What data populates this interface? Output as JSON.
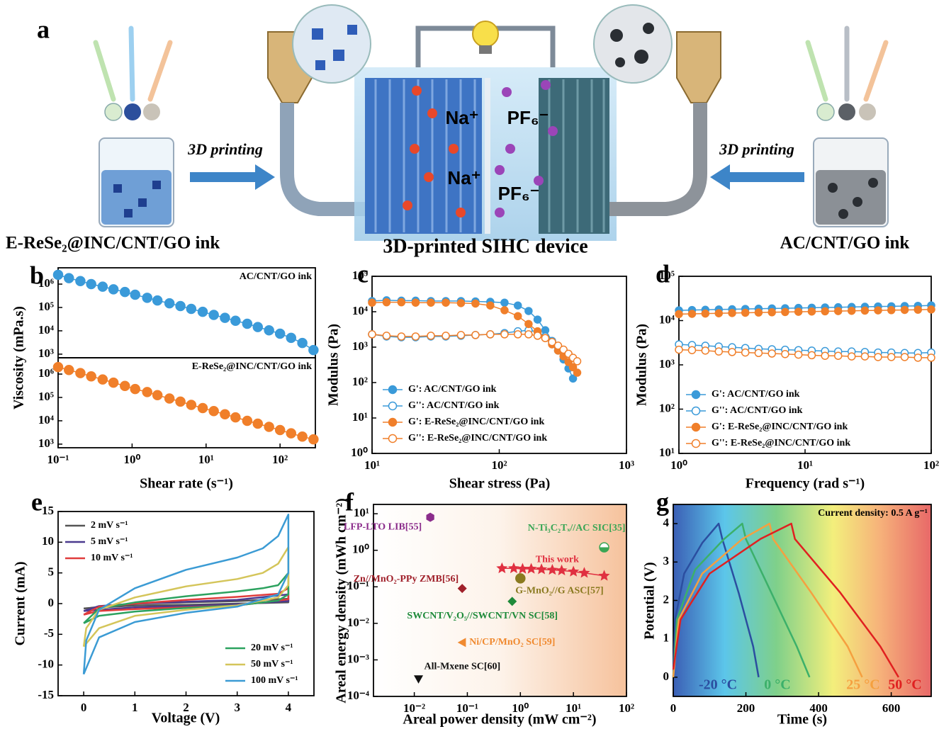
{
  "figure_a": {
    "panel": "a",
    "arrow_left": "3D printing",
    "arrow_right": "3D printing",
    "left_label": "E-ReSe₂@INC/CNT/GO ink",
    "center_label": "3D-printed SIHC device",
    "right_label": "AC/CNT/GO ink",
    "ions": [
      "Na⁺",
      "PF₆⁻",
      "Na⁺",
      "PF₆⁻"
    ]
  },
  "chart_data": [
    {
      "panel": "b",
      "type": "line",
      "annotation": "AC/CNT/GO ink",
      "ylabel": "Viscosity (mPa.s)",
      "xlog": true,
      "ylog": true,
      "xlim": [
        0.1,
        300
      ],
      "ylim": [
        700,
        5000000
      ],
      "yticks": [
        {
          "value": 1000,
          "label": "10³"
        },
        {
          "value": 10000,
          "label": "10⁴"
        },
        {
          "value": 100000,
          "label": "10⁵"
        },
        {
          "value": 1000000,
          "label": "10⁶"
        }
      ],
      "x": [
        0.1,
        0.14,
        0.2,
        0.28,
        0.4,
        0.56,
        0.8,
        1.1,
        1.6,
        2.2,
        3.2,
        4.5,
        6.3,
        9,
        12.7,
        18,
        25,
        36,
        50,
        71,
        100,
        141,
        200,
        283
      ],
      "series": [
        {
          "color": "#3a9ad9",
          "marker": "filled-circle",
          "values": [
            2500000,
            1800000,
            1350000,
            1000000,
            780000,
            600000,
            460000,
            350000,
            260000,
            200000,
            150000,
            115000,
            87000,
            65000,
            48000,
            36000,
            27000,
            20000,
            14500,
            10500,
            7500,
            5000,
            3000,
            1500
          ]
        }
      ]
    },
    {
      "type": "line",
      "annotation": "E-ReSe₂@INC/CNT/GO ink",
      "xlabel": "Shear rate (s⁻¹)",
      "xlog": true,
      "ylog": true,
      "xlim": [
        0.1,
        300
      ],
      "ylim": [
        700,
        5000000
      ],
      "xticks": [
        {
          "value": 0.1,
          "label": "10⁻¹"
        },
        {
          "value": 1,
          "label": "10⁰"
        },
        {
          "value": 10,
          "label": "10¹"
        },
        {
          "value": 100,
          "label": "10²"
        }
      ],
      "yticks": [
        {
          "value": 1000,
          "label": "10³"
        },
        {
          "value": 10000,
          "label": "10⁴"
        },
        {
          "value": 100000,
          "label": "10⁵"
        },
        {
          "value": 1000000,
          "label": "10⁶"
        }
      ],
      "x": [
        0.1,
        0.14,
        0.2,
        0.28,
        0.4,
        0.56,
        0.8,
        1.1,
        1.6,
        2.2,
        3.2,
        4.5,
        6.3,
        9,
        12.7,
        18,
        25,
        36,
        50,
        71,
        100,
        141,
        200,
        283
      ],
      "series": [
        {
          "color": "#f07f2a",
          "marker": "filled-circle",
          "values": [
            2000000,
            1500000,
            1100000,
            800000,
            590000,
            430000,
            310000,
            230000,
            170000,
            125000,
            90000,
            66000,
            48000,
            35000,
            26000,
            19000,
            14000,
            10000,
            7500,
            5500,
            4000,
            2900,
            2100,
            1600
          ]
        }
      ]
    },
    {
      "panel": "c",
      "type": "line",
      "xlabel": "Shear stress (Pa)",
      "ylabel": "Modulus (Pa)",
      "xlog": true,
      "ylog": true,
      "legend": "lower left",
      "xlim": [
        10,
        1000
      ],
      "ylim": [
        1,
        100000
      ],
      "xticks": [
        {
          "value": 10,
          "label": "10¹"
        },
        {
          "value": 100,
          "label": "10²"
        },
        {
          "value": 1000,
          "label": "10³"
        }
      ],
      "yticks": [
        {
          "value": 1,
          "label": "10⁰"
        },
        {
          "value": 10,
          "label": "10¹"
        },
        {
          "value": 100,
          "label": "10²"
        },
        {
          "value": 1000,
          "label": "10³"
        },
        {
          "value": 10000,
          "label": "10⁴"
        },
        {
          "value": 100000,
          "label": "10⁵"
        }
      ],
      "x": [
        10,
        13,
        17,
        22,
        29,
        38,
        50,
        65,
        85,
        110,
        140,
        170,
        200,
        230,
        260,
        290,
        320,
        350,
        380,
        410
      ],
      "series": [
        {
          "name": "G': AC/CNT/GO ink",
          "color": "#3a9ad9",
          "marker": "filled-circle",
          "values": [
            20000,
            21000,
            20500,
            20500,
            20000,
            20000,
            20000,
            19500,
            19000,
            18000,
            15000,
            10500,
            6000,
            3000,
            1500,
            800,
            450,
            250,
            130,
            null
          ]
        },
        {
          "name": "G'': AC/CNT/GO ink",
          "color": "#3a9ad9",
          "marker": "open-circle",
          "values": [
            2300,
            2000,
            1900,
            1900,
            2000,
            2000,
            2100,
            2200,
            2300,
            2500,
            2800,
            3000,
            2700,
            2000,
            1400,
            1000,
            700,
            500,
            380,
            null
          ]
        },
        {
          "name": "G': E-ReSe₂@INC/CNT/GO ink",
          "color": "#f07f2a",
          "marker": "filled-circle",
          "values": [
            18000,
            18500,
            18500,
            18000,
            18000,
            18000,
            17500,
            17000,
            15000,
            11000,
            7500,
            4500,
            2800,
            1800,
            1200,
            800,
            550,
            380,
            270,
            190
          ]
        },
        {
          "name": "G'': E-ReSe₂@INC/CNT/GO ink",
          "color": "#f07f2a",
          "marker": "open-circle",
          "values": [
            2300,
            2100,
            2000,
            2000,
            2100,
            2100,
            2200,
            2200,
            2300,
            2300,
            2300,
            2300,
            2100,
            1800,
            1400,
            1100,
            850,
            650,
            500,
            400
          ]
        }
      ]
    },
    {
      "panel": "d",
      "type": "line",
      "xlabel": "Frequency (rad s⁻¹)",
      "ylabel": "Modulus (Pa)",
      "xlog": true,
      "ylog": true,
      "legend": "lower left",
      "xlim": [
        1,
        100
      ],
      "ylim": [
        10,
        100000
      ],
      "xticks": [
        {
          "value": 1,
          "label": "10⁰"
        },
        {
          "value": 10,
          "label": "10¹"
        },
        {
          "value": 100,
          "label": "10²"
        }
      ],
      "yticks": [
        {
          "value": 10,
          "label": "10¹"
        },
        {
          "value": 100,
          "label": "10²"
        },
        {
          "value": 1000,
          "label": "10³"
        },
        {
          "value": 10000,
          "label": "10⁴"
        },
        {
          "value": 100000,
          "label": "10⁵"
        }
      ],
      "x": [
        1,
        1.27,
        1.62,
        2.07,
        2.64,
        3.36,
        4.28,
        5.46,
        6.95,
        8.86,
        11.3,
        14.4,
        18.3,
        23.4,
        29.8,
        37.9,
        48.3,
        61.6,
        78.5,
        100
      ],
      "series": [
        {
          "name": "G': AC/CNT/GO ink",
          "color": "#3a9ad9",
          "marker": "filled-circle",
          "values": [
            17000,
            17300,
            17500,
            17800,
            18000,
            18300,
            18500,
            18800,
            19000,
            19300,
            19500,
            19800,
            20000,
            20300,
            20500,
            20800,
            21000,
            21300,
            21500,
            22000
          ]
        },
        {
          "name": "G'': AC/CNT/GO ink",
          "color": "#3a9ad9",
          "marker": "open-circle",
          "values": [
            2900,
            2800,
            2700,
            2600,
            2500,
            2400,
            2300,
            2250,
            2200,
            2150,
            2100,
            2050,
            2000,
            2000,
            1950,
            1900,
            1900,
            1850,
            1850,
            1900
          ]
        },
        {
          "name": "G': E-ReSe₂@INC/CNT/GO ink",
          "color": "#f07f2a",
          "marker": "filled-circle",
          "values": [
            14000,
            14200,
            14400,
            14600,
            14800,
            15000,
            15200,
            15400,
            15600,
            15800,
            16000,
            16200,
            16400,
            16600,
            16800,
            17000,
            17200,
            17400,
            17600,
            17800
          ]
        },
        {
          "name": "G'': E-ReSe₂@INC/CNT/GO ink",
          "color": "#f07f2a",
          "marker": "open-circle",
          "values": [
            2200,
            2150,
            2100,
            2000,
            1950,
            1900,
            1850,
            1800,
            1750,
            1700,
            1650,
            1600,
            1600,
            1550,
            1550,
            1500,
            1500,
            1500,
            1450,
            1450
          ]
        }
      ]
    },
    {
      "panel": "e",
      "type": "line",
      "xlabel": "Voltage (V)",
      "ylabel": "Current (mA)",
      "legend": "upper left",
      "xlim": [
        -0.5,
        4.5
      ],
      "ylim": [
        -15,
        15
      ],
      "xticks": [
        0,
        1,
        2,
        3,
        4
      ],
      "yticks": [
        -15,
        -10,
        -5,
        0,
        5,
        10,
        15
      ],
      "series": [
        {
          "name": "2 mV s⁻¹",
          "color": "#555555",
          "x": [
            0,
            1,
            2,
            3,
            4,
            4,
            2,
            1,
            0
          ],
          "values": [
            -0.8,
            0,
            0.2,
            0.4,
            0.8,
            0.2,
            -0.2,
            -0.3,
            -0.8
          ]
        },
        {
          "name": "5 mV s⁻¹",
          "color": "#4b3a8f",
          "x": [
            0,
            0.3,
            1,
            2,
            3,
            4,
            4,
            3,
            2,
            1,
            0
          ],
          "values": [
            -1.2,
            -0.4,
            0,
            0.3,
            0.6,
            1.5,
            0.4,
            -0.1,
            -0.4,
            -0.6,
            -1.2
          ]
        },
        {
          "name": "10 mV s⁻¹",
          "color": "#e03c3c",
          "x": [
            0,
            0.3,
            1,
            2,
            3,
            3.8,
            4,
            4,
            3,
            2,
            1,
            0.3,
            0
          ],
          "values": [
            -1.8,
            -0.5,
            0,
            0.6,
            1.1,
            1.6,
            2.5,
            0.7,
            -0.3,
            -0.6,
            -0.9,
            -1.2,
            -1.8
          ]
        },
        {
          "name": "20 mV s⁻¹",
          "color": "#2ca25f",
          "x": [
            0,
            0.3,
            1,
            2,
            3,
            3.5,
            3.8,
            4,
            4,
            3.8,
            3,
            2,
            1,
            0.3,
            0
          ],
          "values": [
            -3.2,
            -0.8,
            0.2,
            1.2,
            2,
            2.5,
            3,
            5,
            1.5,
            0.5,
            -0.3,
            -0.7,
            -1.3,
            -2,
            -3.2
          ]
        },
        {
          "name": "50 mV s⁻¹",
          "color": "#d4c55a",
          "x": [
            0,
            0.05,
            0.3,
            1,
            2,
            3,
            3.5,
            3.8,
            4,
            4,
            3.8,
            3,
            2,
            1,
            0.3,
            0
          ],
          "values": [
            -7,
            -4,
            -1,
            1,
            2.8,
            4,
            5,
            6.5,
            9.2,
            3,
            1,
            -0.3,
            -1,
            -2,
            -4,
            -7
          ]
        },
        {
          "name": "100 mV s⁻¹",
          "color": "#3b9bd4",
          "x": [
            0,
            0.05,
            0.3,
            1,
            2,
            3,
            3.5,
            3.8,
            4,
            4,
            3.8,
            3,
            2,
            1,
            0.3,
            0
          ],
          "values": [
            -11.5,
            -6,
            -1,
            2.5,
            5.5,
            7.5,
            9,
            11,
            14.5,
            5,
            1.5,
            -0.5,
            -1.5,
            -3,
            -5.5,
            -11.5
          ]
        }
      ]
    },
    {
      "panel": "f",
      "type": "scatter",
      "xlabel": "Areal power density (mW cm⁻²)",
      "ylabel": "Areal energy density (mWh cm⁻²)",
      "xlog": true,
      "ylog": true,
      "xlim": [
        0.0017,
        100
      ],
      "ylim": [
        0.0001,
        18
      ],
      "xticks": [
        {
          "value": 0.01,
          "label": "10⁻²"
        },
        {
          "value": 0.1,
          "label": "10⁻¹"
        },
        {
          "value": 1,
          "label": "10⁰"
        },
        {
          "value": 10,
          "label": "10¹"
        },
        {
          "value": 100,
          "label": "10²"
        }
      ],
      "yticks": [
        {
          "value": 0.0001,
          "label": "10⁻⁴"
        },
        {
          "value": 0.001,
          "label": "10⁻³"
        },
        {
          "value": 0.01,
          "label": "10⁻²"
        },
        {
          "value": 0.1,
          "label": "10⁻¹"
        },
        {
          "value": 1,
          "label": "10⁰"
        },
        {
          "value": 10,
          "label": "10¹"
        }
      ],
      "series": [
        {
          "name": "LFP-LTO LIB[55]",
          "color": "#8b2c8b",
          "marker": "hexagon",
          "x": [
            0.02
          ],
          "values": [
            8
          ]
        },
        {
          "name": "N-Ti₃C₂Tₓ//AC SIC[35]",
          "color": "#3aa655",
          "marker": "half-circle",
          "x": [
            38
          ],
          "values": [
            1.2
          ]
        },
        {
          "name": "This work",
          "color": "#e03040",
          "marker": "star",
          "x": [
            0.45,
            0.75,
            1.1,
            1.6,
            2.5,
            4,
            6,
            10,
            16,
            38
          ],
          "values": [
            0.32,
            0.32,
            0.31,
            0.31,
            0.3,
            0.29,
            0.28,
            0.26,
            0.24,
            0.2
          ]
        },
        {
          "name": "Zn//MnO₂-PPy ZMB[56]",
          "color": "#a0202a",
          "marker": "diamond",
          "x": [
            0.08
          ],
          "values": [
            0.09
          ]
        },
        {
          "name": "G-MnO₂//G ASC[57]",
          "color": "#8a7a20",
          "marker": "filled-circle",
          "x": [
            1
          ],
          "values": [
            0.17
          ]
        },
        {
          "name": "SWCNT/V₂O₅//SWCNT/VN SC[58]",
          "color": "#1e8a3a",
          "marker": "diamond",
          "x": [
            0.7
          ],
          "values": [
            0.04
          ]
        },
        {
          "name": "Ni/CP/MnO₂ SC[59]",
          "color": "#f08a30",
          "marker": "triangle-left",
          "x": [
            0.08
          ],
          "values": [
            0.003
          ]
        },
        {
          "name": "All-Mxene SC[60]",
          "color": "#111111",
          "marker": "triangle-down",
          "x": [
            0.012
          ],
          "values": [
            0.0003
          ]
        }
      ]
    },
    {
      "panel": "g",
      "type": "line",
      "annotation": "Current density: 0.5 A g⁻¹",
      "xlabel": "Time (s)",
      "ylabel": "Potential (V)",
      "xlim": [
        0,
        710
      ],
      "ylim": [
        -0.5,
        4.5
      ],
      "xticks": [
        0,
        200,
        400,
        600
      ],
      "yticks": [
        0,
        1,
        2,
        3,
        4
      ],
      "series": [
        {
          "name": "-20 °C",
          "color": "#2b4ea0",
          "x": [
            0,
            5,
            30,
            80,
            125,
            135,
            180,
            220,
            235
          ],
          "values": [
            0,
            1.5,
            2.7,
            3.5,
            4,
            3.6,
            2.2,
            0.8,
            0
          ]
        },
        {
          "name": "0 °C",
          "color": "#3cb06a",
          "x": [
            0,
            10,
            60,
            140,
            190,
            200,
            270,
            340,
            375
          ],
          "values": [
            0,
            1.5,
            2.8,
            3.6,
            4,
            3.6,
            2.2,
            0.8,
            0
          ]
        },
        {
          "name": "25 °C",
          "color": "#f5a040",
          "x": [
            0,
            15,
            80,
            190,
            265,
            275,
            380,
            480,
            520
          ],
          "values": [
            0,
            1.5,
            2.7,
            3.6,
            4,
            3.6,
            2.2,
            0.8,
            0
          ]
        },
        {
          "name": "50 °C",
          "color": "#e02020",
          "x": [
            0,
            20,
            100,
            240,
            325,
            335,
            460,
            570,
            620
          ],
          "values": [
            0.2,
            1.5,
            2.7,
            3.6,
            4,
            3.6,
            2.2,
            0.8,
            0
          ]
        }
      ]
    }
  ]
}
